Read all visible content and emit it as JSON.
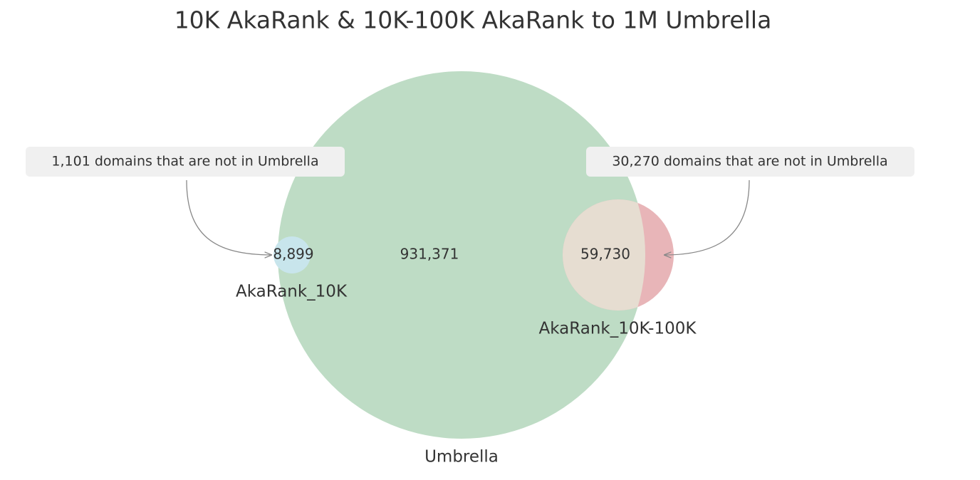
{
  "chart_data": {
    "type": "venn",
    "title": "10K AkaRank & 10K-100K AkaRank to 1M Umbrella",
    "sets": [
      {
        "name": "Umbrella",
        "color": "#bedcc5"
      },
      {
        "name": "AkaRank_10K",
        "color": "#c8e5ec"
      },
      {
        "name": "AkaRank_10K-100K",
        "color": "#e8b5b8"
      }
    ],
    "overlap_color": "#e6ddd1",
    "region_sets": [
      [
        "Umbrella"
      ],
      [
        "AkaRank_10K",
        "Umbrella"
      ],
      [
        "AkaRank_10K-100K",
        "Umbrella"
      ]
    ],
    "values": [
      931371,
      8899,
      59730
    ],
    "value_labels": [
      "931,371",
      "8,899",
      "59,730"
    ],
    "annotations": [
      "1,101 domains that are not in Umbrella",
      "30,270 domains that are not in Umbrella"
    ]
  }
}
